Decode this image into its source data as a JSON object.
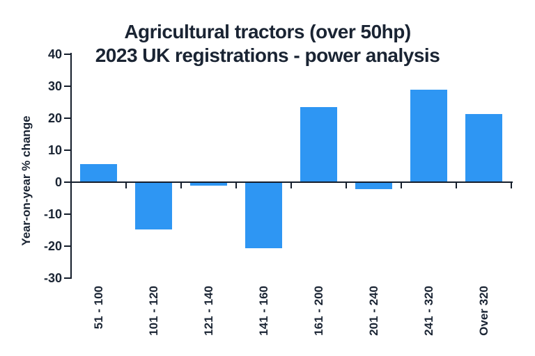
{
  "title": {
    "line1": "Agricultural tractors (over 50hp)",
    "line2": "2023 UK registrations - power analysis"
  },
  "chart_data": {
    "type": "bar",
    "title": "Agricultural tractors (over 50hp) 2023 UK registrations - power analysis",
    "categories": [
      "51 - 100",
      "101 - 120",
      "121 - 140",
      "141 - 160",
      "161 - 200",
      "201 - 240",
      "241 - 320",
      "Over 320"
    ],
    "values": [
      5.7,
      -14.5,
      -0.8,
      -20.4,
      23.4,
      -2,
      29,
      21.4
    ],
    "xlabel": "",
    "ylabel": "Year-on-year % change",
    "ylim": [
      -30,
      40
    ],
    "yticks": [
      40,
      30,
      20,
      10,
      0,
      -10,
      -20,
      -30
    ],
    "grid": false,
    "legend": false,
    "bar_color": "#2e96f3",
    "text_color": "#1a2433",
    "axis_color": "#141d2b"
  }
}
